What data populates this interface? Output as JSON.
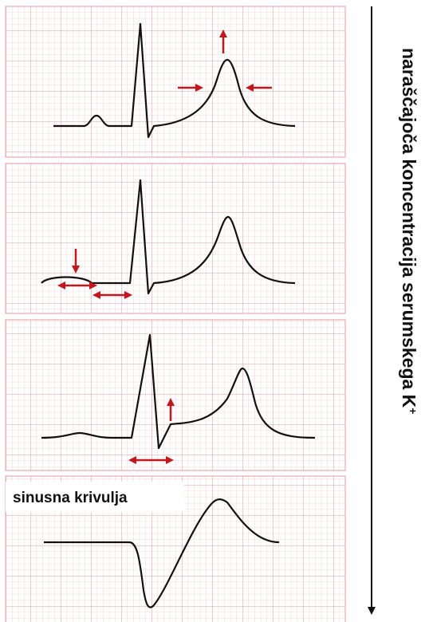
{
  "axis_label": {
    "text": "naraščajoča koncentracija serumskega K",
    "superscript": "+"
  },
  "panels": [
    {
      "label": "sinusna krivulja"
    }
  ]
}
